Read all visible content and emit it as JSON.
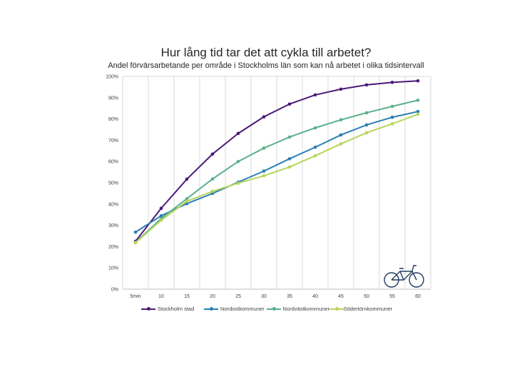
{
  "title": "Hur lång tid tar det att cykla till arbetet?",
  "subtitle": "Andel förvärsarbetande per område i Stockholms län som kan nå arbetet i olika tidsintervall",
  "icon": "bicycle-icon",
  "chart_data": {
    "type": "line",
    "title": "Hur lång tid tar det att cykla till arbetet?",
    "subtitle": "Andel förvärsarbetande per område i Stockholms län som kan nå arbetet i olika tidsintervall",
    "xlabel": "",
    "ylabel": "",
    "categories": [
      "5min",
      "10",
      "15",
      "20",
      "25",
      "30",
      "35",
      "40",
      "45",
      "50",
      "55",
      "60"
    ],
    "y_ticks": [
      "0%",
      "10%",
      "20%",
      "30%",
      "40%",
      "50%",
      "60%",
      "70%",
      "80%",
      "90%",
      "100%"
    ],
    "ylim": [
      0,
      100
    ],
    "grid": "vertical",
    "legend": "bottom",
    "series": [
      {
        "name": "Stockholm stad",
        "color": "#4b1978",
        "values": [
          22.5,
          38,
          51.7,
          63.5,
          73.2,
          81,
          87,
          91.3,
          94,
          96,
          97.2,
          97.9
        ]
      },
      {
        "name": "Nordostkommuner",
        "color": "#2a7fb5",
        "values": [
          26.8,
          34.5,
          40.2,
          45,
          50.3,
          55.5,
          61.3,
          66.7,
          72.5,
          77.2,
          80.8,
          83.5
        ]
      },
      {
        "name": "Nordvästkommuner",
        "color": "#5bb08b",
        "values": [
          22,
          33.2,
          42.5,
          51.8,
          60,
          66.3,
          71.5,
          75.8,
          79.6,
          82.9,
          85.9,
          88.8
        ]
      },
      {
        "name": "Södertörnkommuner",
        "color": "#b7d55a",
        "values": [
          21.8,
          32.4,
          41.3,
          46,
          49.8,
          53.3,
          57.4,
          62.7,
          68.3,
          73.5,
          77.7,
          82.2
        ]
      }
    ]
  }
}
